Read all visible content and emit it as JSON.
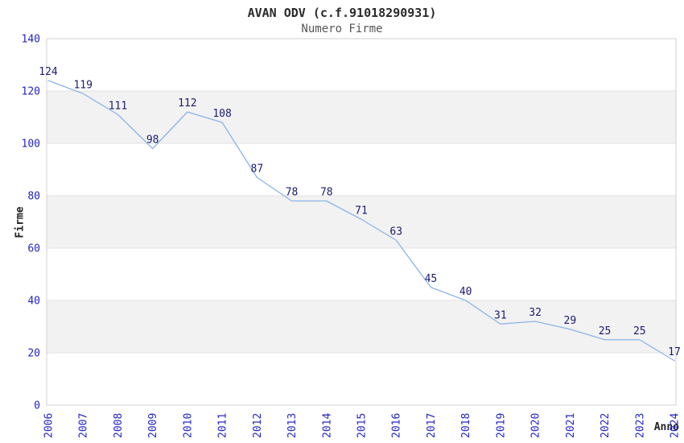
{
  "chart_data": {
    "type": "line",
    "title": "AVAN ODV (c.f.91018290931)",
    "subtitle": "Numero Firme",
    "xlabel": "Anno",
    "ylabel": "Firme",
    "categories": [
      "2006",
      "2007",
      "2008",
      "2009",
      "2010",
      "2011",
      "2012",
      "2013",
      "2014",
      "2015",
      "2016",
      "2017",
      "2018",
      "2019",
      "2020",
      "2021",
      "2022",
      "2023",
      "2024"
    ],
    "values": [
      124,
      119,
      111,
      98,
      112,
      108,
      87,
      78,
      78,
      71,
      63,
      45,
      40,
      31,
      32,
      29,
      25,
      25,
      17
    ],
    "ylim": [
      0,
      140
    ],
    "yticks": [
      0,
      20,
      40,
      60,
      80,
      100,
      120,
      140
    ],
    "point_labels_visible": true,
    "legend": "none",
    "grid": "alternating horizontal bands every 20 units",
    "colors": {
      "line": "#8ab4e8",
      "axis_tick_labels": "#2424cc",
      "point_labels": "#1a1a70",
      "band_fill": "#f2f2f2",
      "band_border": "#e2e2e2",
      "plot_border": "#d0d0d0",
      "title": "#2b2b2b",
      "subtitle": "#555555",
      "axis_titles": "#222222",
      "background": "#ffffff"
    }
  }
}
